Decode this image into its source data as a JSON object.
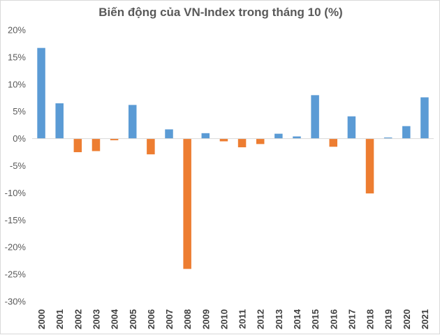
{
  "chart_data": {
    "type": "bar",
    "title": "Biến động của VN-Index trong tháng 10 (%)",
    "xlabel": "",
    "ylabel": "",
    "ylim": [
      -30,
      20
    ],
    "ytick_step": 5,
    "ytick_suffix": "%",
    "grid": false,
    "legend": "none",
    "categories": [
      "2000",
      "2001",
      "2002",
      "2003",
      "2004",
      "2005",
      "2006",
      "2007",
      "2008",
      "2009",
      "2010",
      "2011",
      "2012",
      "2013",
      "2014",
      "2015",
      "2016",
      "2017",
      "2018",
      "2019",
      "2020",
      "2021"
    ],
    "values": [
      16.7,
      6.5,
      -2.5,
      -2.3,
      -0.3,
      6.2,
      -2.9,
      1.7,
      -24.0,
      1.0,
      -0.5,
      -1.6,
      -1.0,
      0.9,
      0.4,
      8.0,
      -1.5,
      4.1,
      -10.1,
      0.2,
      2.3,
      7.6
    ],
    "colors": {
      "positive": "#5b9bd5",
      "negative": "#ed7d31"
    }
  }
}
